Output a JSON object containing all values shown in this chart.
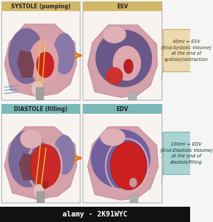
{
  "title_top_left": "SYSTOLE (pumping)",
  "title_top_right": "ESV",
  "title_bottom_left": "DIASTOLE (filling)",
  "title_bottom_right": "EDV",
  "box_top_text": "40ml = ESV\n(End-Systolic Volume)\nat the end of\nsystole/contraction",
  "box_bottom_text": "100ml = EDV\n(End-Diastolic Volume)\nat the end of\ndiastole/filling",
  "watermark": "alamy - 2K91WYC",
  "bg_color": "#f5f5f5",
  "panel_border_color": "#aaaaaa",
  "header_top_color": "#d4b86a",
  "header_bottom_color": "#7ab8b8",
  "box_top_bg": "#ecd9b0",
  "box_bottom_bg": "#aad4d4",
  "box_top_edge": "#c8a860",
  "box_bottom_edge": "#70b0b0",
  "arrow_color": "#e07818",
  "watermark_bg": "#111111",
  "watermark_color": "#ffffff",
  "heart_outer": "#c8909a",
  "heart_outer_edge": "#b07080",
  "heart_purple_l": "#887098",
  "heart_purple_r": "#7868a0",
  "heart_red_bright": "#cc2222",
  "heart_red_dark": "#aa1818",
  "heart_dark_chamber": "#663344",
  "heart_pink_inner": "#e8b0b8",
  "heart_grey_vessel": "#909090",
  "heart_yellow": "#e8c820",
  "heart_blue_wave": "#6090c0",
  "connector_color_top": "#999977",
  "connector_color_bot": "#779999"
}
